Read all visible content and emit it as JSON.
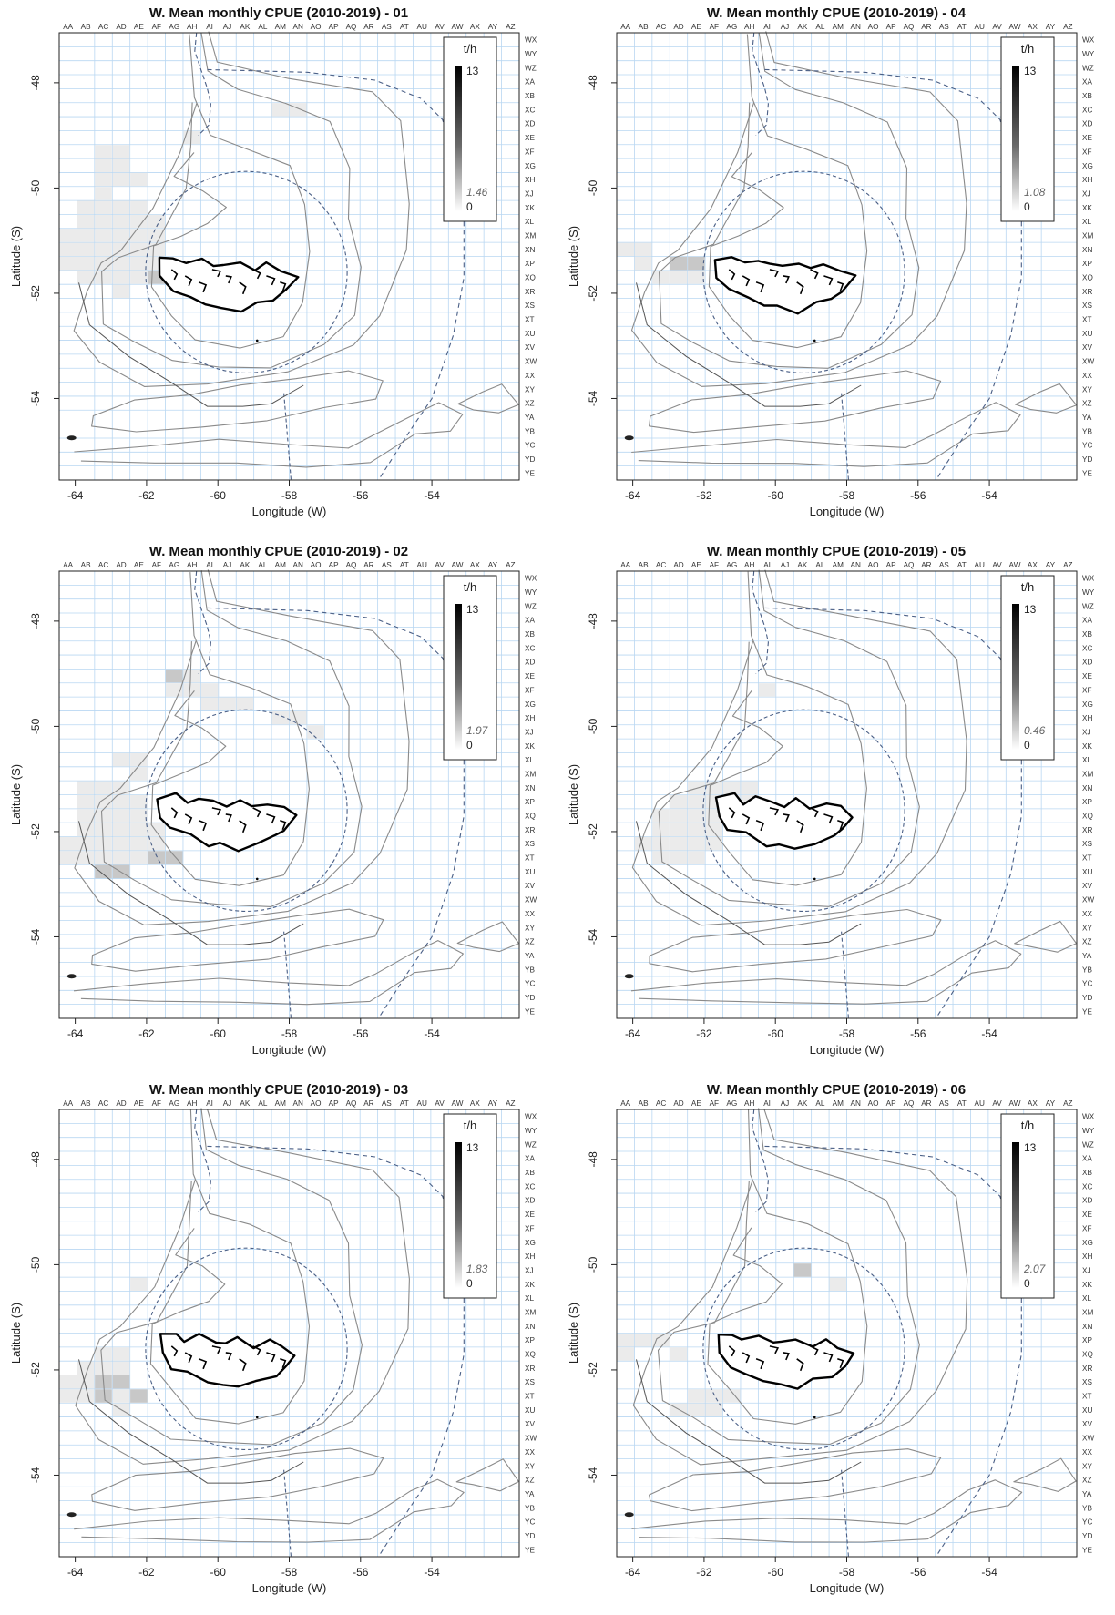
{
  "figure": {
    "panels": [
      {
        "title": "W. Mean monthly CPUE (2010-2019) - 01",
        "legend": {
          "unit": "t/h",
          "max": "13",
          "value": "1.46",
          "zero": "0"
        },
        "cells": [
          [
            "AH",
            7
          ],
          [
            "AM",
            5
          ],
          [
            "AN",
            5
          ],
          [
            "AC",
            8
          ],
          [
            "AD",
            8
          ],
          [
            "AC",
            9
          ],
          [
            "AD",
            9
          ],
          [
            "AC",
            10
          ],
          [
            "AD",
            10
          ],
          [
            "AE",
            10
          ],
          [
            "AC",
            11
          ],
          [
            "AB",
            12
          ],
          [
            "AC",
            12
          ],
          [
            "AD",
            12
          ],
          [
            "AE",
            12
          ],
          [
            "AB",
            13
          ],
          [
            "AC",
            13
          ],
          [
            "AD",
            13
          ],
          [
            "AE",
            13
          ],
          [
            "AF",
            13
          ],
          [
            "AA",
            14
          ],
          [
            "AB",
            14
          ],
          [
            "AC",
            14
          ],
          [
            "AD",
            14
          ],
          [
            "AE",
            14
          ],
          [
            "AF",
            14
          ],
          [
            "AA",
            15
          ],
          [
            "AB",
            15
          ],
          [
            "AC",
            15
          ],
          [
            "AD",
            15
          ],
          [
            "AE",
            15
          ],
          [
            "AF",
            15
          ],
          [
            "AA",
            16
          ],
          [
            "AB",
            16
          ],
          [
            "AC",
            16
          ],
          [
            "AD",
            16
          ],
          [
            "AE",
            16
          ],
          [
            "AF",
            16
          ],
          [
            "AB",
            17
          ],
          [
            "AC",
            17
          ],
          [
            "AD",
            17
          ],
          [
            "AE",
            17
          ],
          [
            "AF",
            17,
            true
          ],
          [
            "AD",
            18
          ]
        ]
      },
      {
        "title": "W. Mean monthly CPUE (2010-2019) - 04",
        "legend": {
          "unit": "t/h",
          "max": "13",
          "value": "1.08",
          "zero": "0"
        },
        "cells": [
          [
            "AA",
            15
          ],
          [
            "AB",
            15
          ],
          [
            "AB",
            16
          ],
          [
            "AD",
            16,
            true
          ],
          [
            "AE",
            16,
            true
          ],
          [
            "AC",
            17
          ],
          [
            "AD",
            17
          ],
          [
            "AE",
            17
          ]
        ]
      },
      {
        "title": "W. Mean monthly CPUE (2010-2019) - 02",
        "legend": {
          "unit": "t/h",
          "max": "13",
          "value": "1.97",
          "zero": "0"
        },
        "cells": [
          [
            "AG",
            7,
            true
          ],
          [
            "AH",
            7
          ],
          [
            "AG",
            8
          ],
          [
            "AH",
            8
          ],
          [
            "AI",
            8
          ],
          [
            "AI",
            9
          ],
          [
            "AJ",
            9
          ],
          [
            "AK",
            9
          ],
          [
            "AM",
            10
          ],
          [
            "AN",
            10
          ],
          [
            "AO",
            11
          ],
          [
            "AD",
            13
          ],
          [
            "AE",
            13
          ],
          [
            "AE",
            14
          ],
          [
            "AB",
            15
          ],
          [
            "AC",
            15
          ],
          [
            "AD",
            15
          ],
          [
            "AB",
            16
          ],
          [
            "AC",
            16
          ],
          [
            "AD",
            16
          ],
          [
            "AE",
            16
          ],
          [
            "AB",
            17
          ],
          [
            "AC",
            17
          ],
          [
            "AD",
            17
          ],
          [
            "AE",
            17
          ],
          [
            "AB",
            18
          ],
          [
            "AC",
            18
          ],
          [
            "AD",
            18
          ],
          [
            "AE",
            18
          ],
          [
            "AF",
            18
          ],
          [
            "AA",
            19
          ],
          [
            "AB",
            19
          ],
          [
            "AC",
            19
          ],
          [
            "AD",
            19
          ],
          [
            "AE",
            19
          ],
          [
            "AF",
            19
          ],
          [
            "AA",
            20
          ],
          [
            "AB",
            20
          ],
          [
            "AC",
            20
          ],
          [
            "AD",
            20
          ],
          [
            "AE",
            20
          ],
          [
            "AF",
            20,
            true
          ],
          [
            "AG",
            20,
            true
          ],
          [
            "AC",
            21,
            true
          ],
          [
            "AD",
            21,
            true
          ]
        ]
      },
      {
        "title": "W. Mean monthly CPUE (2010-2019) - 05",
        "legend": {
          "unit": "t/h",
          "max": "13",
          "value": "0.46",
          "zero": "0"
        },
        "cells": [
          [
            "AI",
            8
          ],
          [
            "AE",
            15
          ],
          [
            "AF",
            15
          ],
          [
            "AG",
            15
          ],
          [
            "AH",
            15
          ],
          [
            "AD",
            16
          ],
          [
            "AE",
            16
          ],
          [
            "AF",
            16
          ],
          [
            "AG",
            16
          ],
          [
            "AH",
            16
          ],
          [
            "AC",
            17
          ],
          [
            "AD",
            17
          ],
          [
            "AE",
            17
          ],
          [
            "AF",
            17
          ],
          [
            "AC",
            18
          ],
          [
            "AD",
            18
          ],
          [
            "AE",
            18
          ],
          [
            "AF",
            18
          ],
          [
            "AB",
            19
          ],
          [
            "AC",
            19
          ],
          [
            "AD",
            19
          ],
          [
            "AE",
            19
          ],
          [
            "AF",
            19
          ],
          [
            "AC",
            20
          ],
          [
            "AD",
            20
          ],
          [
            "AE",
            20
          ]
        ]
      },
      {
        "title": "W. Mean monthly CPUE (2010-2019) - 03",
        "legend": {
          "unit": "t/h",
          "max": "13",
          "value": "1.83",
          "zero": "0"
        },
        "cells": [
          [
            "AE",
            12
          ],
          [
            "AC",
            17
          ],
          [
            "AD",
            17
          ],
          [
            "AB",
            18
          ],
          [
            "AC",
            18
          ],
          [
            "AD",
            18
          ],
          [
            "AA",
            19
          ],
          [
            "AB",
            19
          ],
          [
            "AC",
            19,
            true
          ],
          [
            "AD",
            19,
            true
          ],
          [
            "AA",
            20
          ],
          [
            "AB",
            20
          ],
          [
            "AC",
            20,
            true
          ],
          [
            "AD",
            20
          ],
          [
            "AE",
            20,
            true
          ],
          [
            "AD",
            21
          ]
        ]
      },
      {
        "title": "W. Mean monthly CPUE (2010-2019) - 06",
        "legend": {
          "unit": "t/h",
          "max": "13",
          "value": "2.07",
          "zero": "0"
        },
        "cells": [
          [
            "AA",
            16
          ],
          [
            "AB",
            16
          ],
          [
            "AC",
            16
          ],
          [
            "AA",
            17
          ],
          [
            "AD",
            17
          ],
          [
            "AE",
            20
          ],
          [
            "AF",
            20
          ],
          [
            "AG",
            20
          ],
          [
            "AD",
            21
          ],
          [
            "AE",
            21
          ],
          [
            "AF",
            21
          ],
          [
            "AK",
            11,
            true
          ],
          [
            "AM",
            12
          ]
        ]
      }
    ],
    "top_codes": [
      "AA",
      "AB",
      "AC",
      "AD",
      "AE",
      "AF",
      "AG",
      "AH",
      "AI",
      "AJ",
      "AK",
      "AL",
      "AM",
      "AN",
      "AO",
      "AP",
      "AQ",
      "AR",
      "AS",
      "AT",
      "AU",
      "AV",
      "AW",
      "AX",
      "AY",
      "AZ"
    ],
    "right_codes": [
      "WX",
      "WY",
      "WZ",
      "XA",
      "XB",
      "XC",
      "XD",
      "XE",
      "XF",
      "XG",
      "XH",
      "XJ",
      "XK",
      "XL",
      "XM",
      "XN",
      "XP",
      "XQ",
      "XR",
      "XS",
      "XT",
      "XU",
      "XV",
      "XW",
      "XX",
      "XY",
      "XZ",
      "YA",
      "YB",
      "YC",
      "YD",
      "YE"
    ],
    "x_ticks": [
      "-64",
      "-62",
      "-60",
      "-58",
      "-56",
      "-54"
    ],
    "y_ticks": [
      "-48",
      "-50",
      "-52",
      "-54"
    ],
    "x_axis_label": "Longitude (W)",
    "y_axis_label": "Latitude (S)",
    "colors": {
      "grid": "#b9d7f2",
      "contour": "#8a8a8a",
      "boundary": "#4a5f86",
      "island": "#000000",
      "cell_light": "#ebebeb",
      "cell_mid": "#c8c8c8"
    }
  }
}
